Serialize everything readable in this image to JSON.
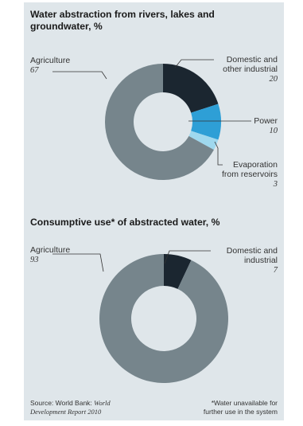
{
  "chart_data": [
    {
      "type": "pie",
      "title": "Water abstraction from rivers, lakes and groundwater, %",
      "slices": [
        {
          "label": "Domestic and other industrial",
          "value": 20,
          "color": "#1b2630"
        },
        {
          "label": "Power",
          "value": 10,
          "color": "#2e9fd6"
        },
        {
          "label": "Evaporation from reservoirs",
          "value": 3,
          "color": "#9fd8ee"
        },
        {
          "label": "Agriculture",
          "value": 67,
          "color": "#76858c"
        }
      ]
    },
    {
      "type": "pie",
      "title": "Consumptive use* of abstracted water, %",
      "slices": [
        {
          "label": "Domestic and industrial",
          "value": 7,
          "color": "#1b2630"
        },
        {
          "label": "Agriculture",
          "value": 93,
          "color": "#76858c"
        }
      ]
    }
  ],
  "labels": {
    "c1_agri_label": "Agriculture",
    "c1_agri_value": "67",
    "c1_dom_label1": "Domestic and",
    "c1_dom_label2": "other industrial",
    "c1_dom_value": "20",
    "c1_power_label": "Power",
    "c1_power_value": "10",
    "c1_evap_label1": "Evaporation",
    "c1_evap_label2": "from reservoirs",
    "c1_evap_value": "3",
    "c2_agri_label": "Agriculture",
    "c2_agri_value": "93",
    "c2_dom_label1": "Domestic and",
    "c2_dom_label2": "industrial",
    "c2_dom_value": "7"
  },
  "footer": {
    "source_prefix": "Source: World Bank:",
    "source_title1": "World",
    "source_title2": "Development Report 2010",
    "note1": "*Water unavailable for",
    "note2": "further use in the system"
  }
}
